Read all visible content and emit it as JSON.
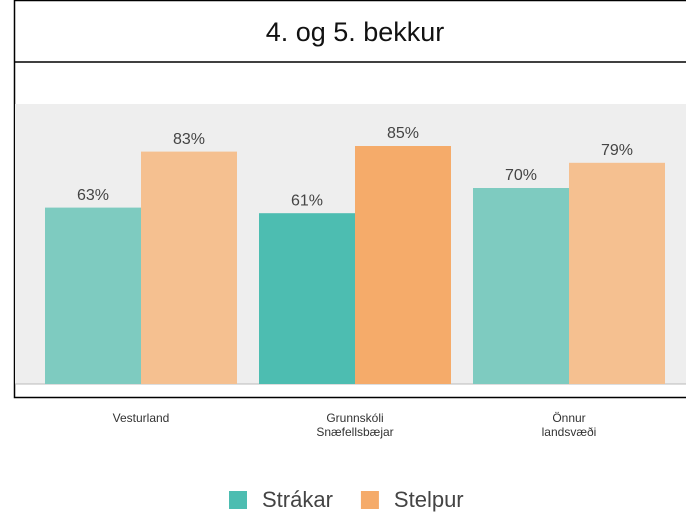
{
  "chart_data": {
    "type": "bar",
    "title": "4. og 5. bekkur",
    "categories": [
      "Vesturland",
      "Grunnskóli\nSnæfellsbæjar",
      "Önnur\nlandsvæði"
    ],
    "series": [
      {
        "name": "Strákar",
        "color": "#4dbdb1",
        "bar_colors": [
          "#7ecbc0",
          "#4dbdb1",
          "#7ecbc0"
        ],
        "values": [
          63,
          61,
          70
        ],
        "value_labels": [
          "63%",
          "61%",
          "70%"
        ]
      },
      {
        "name": "Stelpur",
        "color": "#f5ab6a",
        "bar_colors": [
          "#f5c090",
          "#f5ab6a",
          "#f5c090"
        ],
        "values": [
          83,
          85,
          79
        ],
        "value_labels": [
          "83%",
          "85%",
          "79%"
        ]
      }
    ],
    "ylim": [
      0,
      100
    ],
    "plot_background": "#eeeeee"
  }
}
